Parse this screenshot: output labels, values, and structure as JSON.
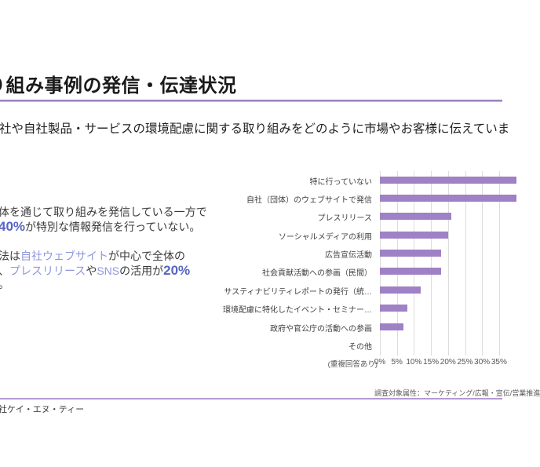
{
  "header": {
    "title": "り組み事例の発信・伝達状況",
    "question": "社や自社製品・サービスの環境配慮に関する取り組みをどのように市場やお客様に伝えていま"
  },
  "summary": {
    "p1_line1": "体を通じて取り組みを発信している一方で",
    "p1_percent": "40%",
    "p1_line2": "が特別な情報発信を行っていない。",
    "p2_pre": "法は",
    "p2_website": "自社ウェブサイト",
    "p2_mid": "が中心で全体の",
    "p2_comma": "、",
    "p2_pressrelease": "プレスリリース",
    "p2_ya": "や",
    "p2_sns": "SNS",
    "p2_usage": "の活用が",
    "p2_percent": "20%",
    "p2_end": "。"
  },
  "chart_data": {
    "type": "bar",
    "orientation": "horizontal",
    "title": "",
    "categories": [
      "特に行っていない",
      "自社（団体）のウェブサイトで発信",
      "プレスリリース",
      "ソーシャルメディアの利用",
      "広告宣伝活動",
      "社会貢献活動への参画（民間）",
      "サスティナビリティレポートの発行（統…",
      "環境配慮に特化したイベント・セミナー…",
      "政府や官公庁の活動への参画",
      "その他"
    ],
    "values": [
      40,
      40,
      21,
      20,
      18,
      18,
      12,
      8,
      7,
      0
    ],
    "unit": "%",
    "x_tick_labels": [
      "0%",
      "5%",
      "10%",
      "15%",
      "20%",
      "25%",
      "30%",
      "35%"
    ],
    "x_tick_step": 5,
    "xlim": [
      0,
      40
    ],
    "grid": true,
    "legend": false,
    "note": "(重複回答あり)",
    "bar_color": "#9f81c5",
    "gridline_color": "#dcdcdc"
  },
  "colors": {
    "accent_number": "#5565c4",
    "accent_keyword": "#8f97dc",
    "title_underline": "#7d5fa8",
    "footer_line": "#b49bd1"
  },
  "footer": {
    "survey_note": "調査対象属性：マーケティング/広報・宣伝/営業推進",
    "company": "社ケイ・エヌ・ティー"
  }
}
